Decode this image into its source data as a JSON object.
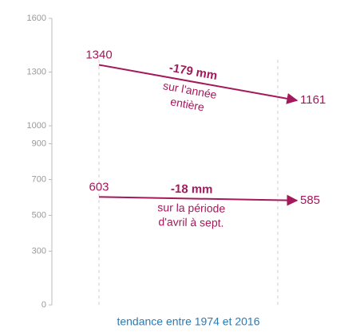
{
  "chart_data": {
    "type": "line",
    "categories": [
      null,
      null
    ],
    "series": [
      {
        "color": "#a3195b",
        "values": [
          1340,
          1161
        ]
      },
      {
        "color": "#a3195b",
        "values": [
          603,
          585
        ]
      }
    ],
    "annotations": [
      {
        "text": "-179 mm",
        "lines": [
          "sur l'année",
          "entière"
        ]
      },
      {
        "text": "-18 mm",
        "lines": [
          "sur la période",
          "d'avril à sept."
        ]
      }
    ],
    "xlabel": "tendance entre 1974 et 2016",
    "ylim": [
      0,
      1600
    ],
    "yticks": [
      0,
      300,
      500,
      700,
      900,
      1000,
      1300,
      1600
    ]
  }
}
